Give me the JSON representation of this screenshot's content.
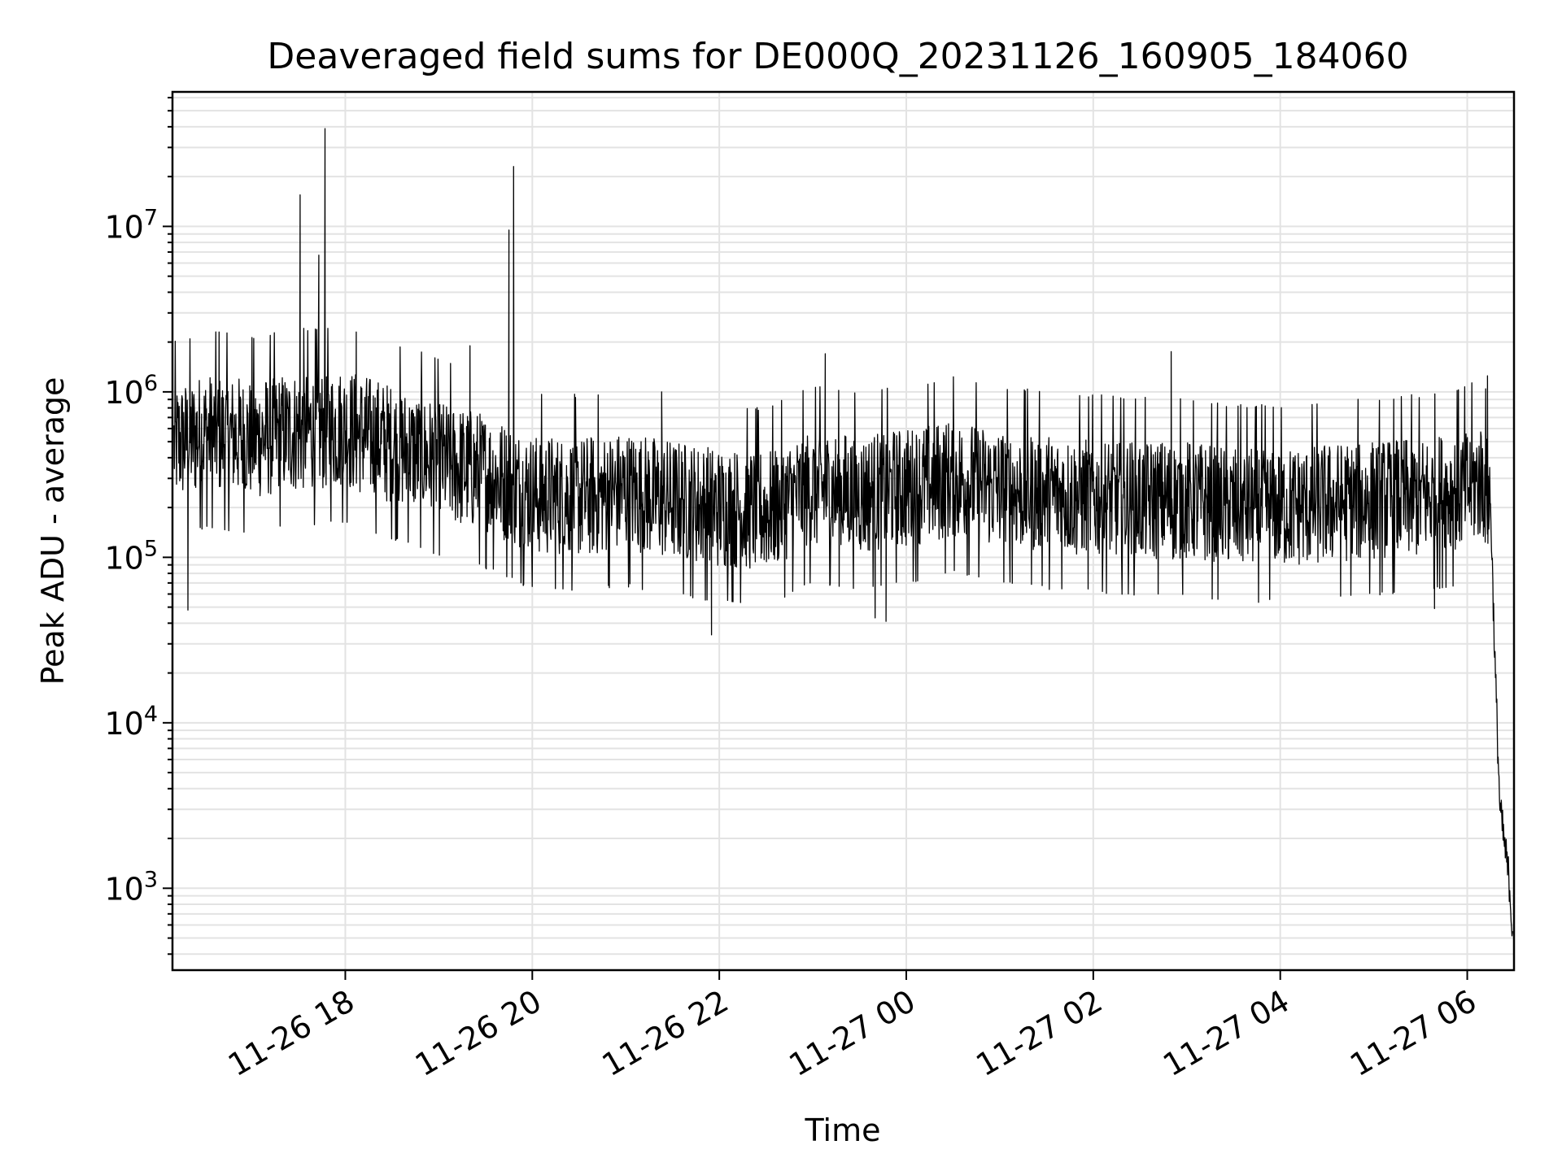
{
  "chart_data": {
    "type": "line",
    "title": "Deaveraged field sums for DE000Q_20231126_160905_184060",
    "xlabel": "Time",
    "ylabel": "Peak ADU - average",
    "x_scale": "time",
    "y_scale": "log",
    "xlim": [
      "2023-11-26T16:09:05",
      "2023-11-27T06:30:00"
    ],
    "ylim": [
      320,
      65000000
    ],
    "grid": "both, major and minor",
    "line_color": "#000000",
    "x_ticks": [
      "11-26 18",
      "11-26 20",
      "11-26 22",
      "11-27 00",
      "11-27 02",
      "11-27 04",
      "11-27 06"
    ],
    "x_tick_values": [
      "2023-11-26T18:00",
      "2023-11-26T20:00",
      "2023-11-26T22:00",
      "2023-11-27T00:00",
      "2023-11-27T02:00",
      "2023-11-27T04:00",
      "2023-11-27T06:00"
    ],
    "y_ticks": [
      {
        "base": "10",
        "exp": "3",
        "value": 1000
      },
      {
        "base": "10",
        "exp": "4",
        "value": 10000
      },
      {
        "base": "10",
        "exp": "5",
        "value": 100000
      },
      {
        "base": "10",
        "exp": "6",
        "value": 1000000
      },
      {
        "base": "10",
        "exp": "7",
        "value": 10000000
      }
    ],
    "series": [
      {
        "x": [
          "2023-11-26T16:10",
          "2023-11-26T16:30",
          "2023-11-26T17:00",
          "2023-11-26T17:30",
          "2023-11-26T18:00",
          "2023-11-26T18:30",
          "2023-11-26T19:00",
          "2023-11-26T19:30",
          "2023-11-26T20:00",
          "2023-11-26T20:30",
          "2023-11-26T21:00",
          "2023-11-26T21:30",
          "2023-11-26T22:00",
          "2023-11-26T22:30",
          "2023-11-26T23:00",
          "2023-11-26T23:30",
          "2023-11-27T00:00",
          "2023-11-27T00:30",
          "2023-11-27T01:00",
          "2023-11-27T01:30",
          "2023-11-27T02:00",
          "2023-11-27T02:30",
          "2023-11-27T03:00",
          "2023-11-27T03:30",
          "2023-11-27T04:00",
          "2023-11-27T04:30",
          "2023-11-27T05:00",
          "2023-11-27T05:30",
          "2023-11-27T06:00",
          "2023-11-27T06:10",
          "2023-11-27T06:15",
          "2023-11-27T06:18",
          "2023-11-27T06:21",
          "2023-11-27T06:24",
          "2023-11-27T06:27",
          "2023-11-27T06:29"
        ],
        "values": [
          480000,
          560000,
          520000,
          580000,
          600000,
          480000,
          380000,
          320000,
          240000,
          230000,
          250000,
          220000,
          200000,
          190000,
          260000,
          240000,
          260000,
          300000,
          260000,
          240000,
          230000,
          220000,
          220000,
          200000,
          200000,
          210000,
          220000,
          230000,
          260000,
          300000,
          200000,
          20000,
          3000,
          1800,
          1100,
          560
        ]
      }
    ],
    "spikes": [
      {
        "x": "2023-11-26T16:39",
        "y": 2300000
      },
      {
        "x": "2023-11-26T17:31",
        "y": 15500000
      },
      {
        "x": "2023-11-26T17:43",
        "y": 6700000
      },
      {
        "x": "2023-11-26T17:47",
        "y": 39000000
      },
      {
        "x": "2023-11-26T18:07",
        "y": 2300000
      },
      {
        "x": "2023-11-26T19:20",
        "y": 1900000
      },
      {
        "x": "2023-11-26T19:45",
        "y": 9500000
      },
      {
        "x": "2023-11-26T19:48",
        "y": 23000000
      },
      {
        "x": "2023-11-26T21:23",
        "y": 1000000
      },
      {
        "x": "2023-11-26T23:08",
        "y": 1700000
      },
      {
        "x": "2023-11-27T02:50",
        "y": 1750000
      },
      {
        "x": "2023-11-27T06:13",
        "y": 1250000
      }
    ],
    "dips": [
      {
        "x": "2023-11-26T16:19",
        "y": 48000
      },
      {
        "x": "2023-11-26T21:55",
        "y": 34000
      },
      {
        "x": "2023-11-26T23:40",
        "y": 43000
      },
      {
        "x": "2023-11-26T23:47",
        "y": 41000
      },
      {
        "x": "2023-11-27T05:39",
        "y": 49000
      }
    ]
  }
}
